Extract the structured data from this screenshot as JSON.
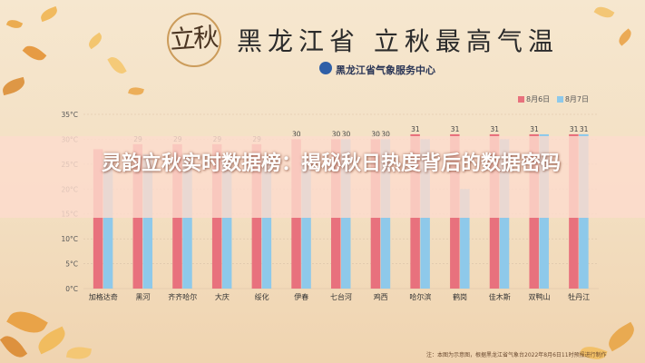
{
  "title": "黑龙江省 立秋最高气温",
  "seal_text": "立秋",
  "organization": "黑龙江省气象服务中心",
  "headline": "灵韵立秋实时数据榜：揭秘秋日热度背后的数据密码",
  "footnote": "注：本图为示意图，根据黑龙江省气象台2022年8月6日11时预报进行制作",
  "colors": {
    "aug6": "#e8717d",
    "aug7": "#8ec9ea"
  },
  "chart_data": {
    "type": "bar",
    "categories": [
      "加格达奇",
      "黑河",
      "齐齐哈尔",
      "大庆",
      "绥化",
      "伊春",
      "七台河",
      "鸡西",
      "哈尔滨",
      "鹤岗",
      "佳木斯",
      "双鸭山",
      "牡丹江"
    ],
    "series": [
      {
        "name": "8月6日",
        "values": [
          28,
          29,
          29,
          29,
          29,
          30,
          30,
          30,
          31,
          31,
          31,
          31,
          31
        ]
      },
      {
        "name": "8月7日",
        "values": [
          26,
          27,
          26,
          26,
          26,
          26,
          30,
          30,
          30,
          20,
          30,
          31,
          31
        ]
      }
    ],
    "data_labels_aug6": [
      "",
      "29",
      "29",
      "29",
      "29",
      "30",
      "30",
      "30",
      "31",
      "31",
      "31",
      "31",
      "31"
    ],
    "data_labels_aug7": [
      "",
      "",
      "",
      "",
      "",
      "",
      "30",
      "30",
      "",
      "",
      "",
      "",
      "31"
    ],
    "y_ticks": [
      "0°C",
      "5°C",
      "10°C",
      "15°C",
      "20°C",
      "25°C",
      "30°C",
      "35°C"
    ],
    "ylim": [
      0,
      35
    ],
    "legend_position": "top-right",
    "grid": true
  }
}
